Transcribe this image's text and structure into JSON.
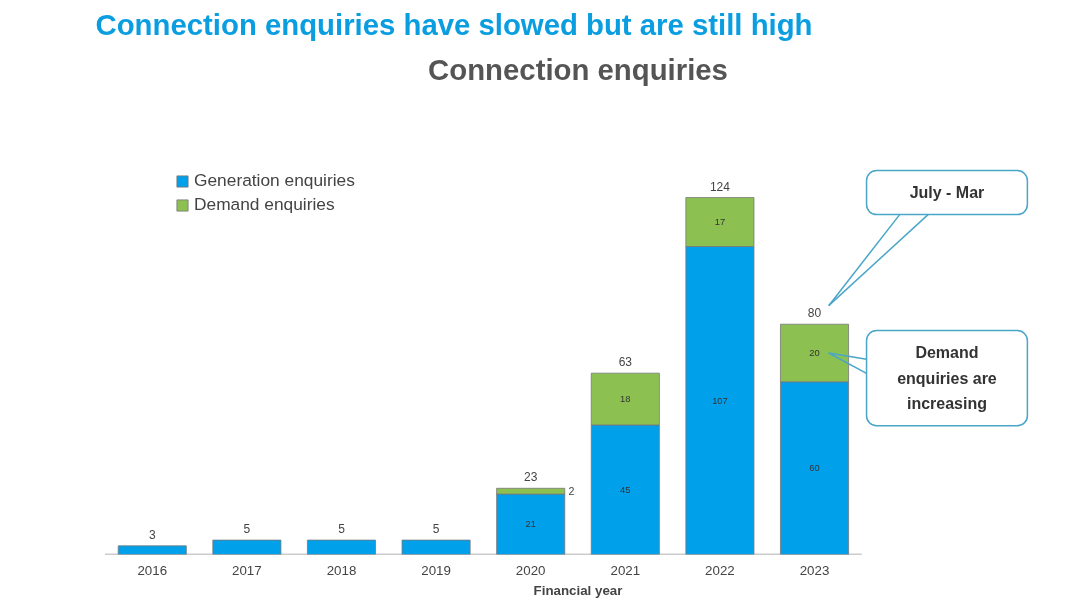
{
  "chart_data": {
    "type": "bar",
    "title": "Connection enquiries have slowed but are still high",
    "subtitle": "Connection enquiries",
    "xlabel": "Financial year",
    "categories": [
      "2016",
      "2017",
      "2018",
      "2019",
      "2020",
      "2021",
      "2022",
      "2023"
    ],
    "stacked": true,
    "series": [
      {
        "name": "Generation enquiries",
        "color": "#00a0ea",
        "values": [
          3,
          5,
          5,
          5,
          21,
          45,
          107,
          60
        ],
        "value_labels": [
          null,
          null,
          null,
          null,
          "21",
          "45",
          "107",
          "60"
        ]
      },
      {
        "name": "Demand enquiries",
        "color": "#8cc152",
        "values": [
          null,
          null,
          null,
          null,
          2,
          18,
          17,
          20
        ],
        "value_labels": [
          null,
          null,
          null,
          null,
          "2",
          "18",
          "17",
          "20"
        ]
      }
    ],
    "totals": [
      "3",
      "5",
      "5",
      "5",
      "23",
      "63",
      "124",
      "80"
    ],
    "annotations": [
      "July - Mar",
      "Demand enquiries are increasing"
    ],
    "legend": "top left",
    "grid": false
  }
}
